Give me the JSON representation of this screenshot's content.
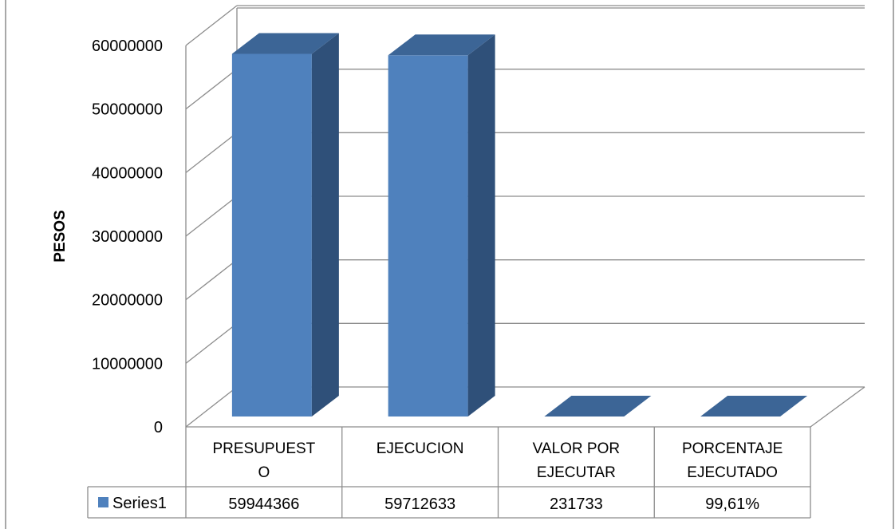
{
  "chart_data": {
    "type": "bar",
    "style": "3d-column",
    "categories": [
      "PRESUPUESTO",
      "EJECUCION",
      "VALOR POR EJECUTAR",
      "PORCENTAJE EJECUTADO"
    ],
    "category_label_lines": [
      [
        "PRESUPUEST",
        "O"
      ],
      [
        "EJECUCION"
      ],
      [
        "VALOR POR",
        "EJECUTAR"
      ],
      [
        "PORCENTAJE",
        "EJECUTADO"
      ]
    ],
    "series": [
      {
        "name": "Series1",
        "values": [
          59944366,
          59712633,
          231733,
          99.61
        ],
        "table_labels": [
          "59944366",
          "59712633",
          "231733",
          "99,61%"
        ]
      }
    ],
    "ylabel": "PESOS",
    "ylim": [
      0,
      60000000
    ],
    "yticks": [
      0,
      10000000,
      20000000,
      30000000,
      40000000,
      50000000,
      60000000
    ],
    "grid": true,
    "legend": "data-table",
    "colors": {
      "bar_front": "#4f81bd",
      "bar_side": "#2f5079",
      "bar_top": "#3c6596",
      "gridline": "#8c8c8c",
      "table_border": "#8c8c8c"
    }
  }
}
